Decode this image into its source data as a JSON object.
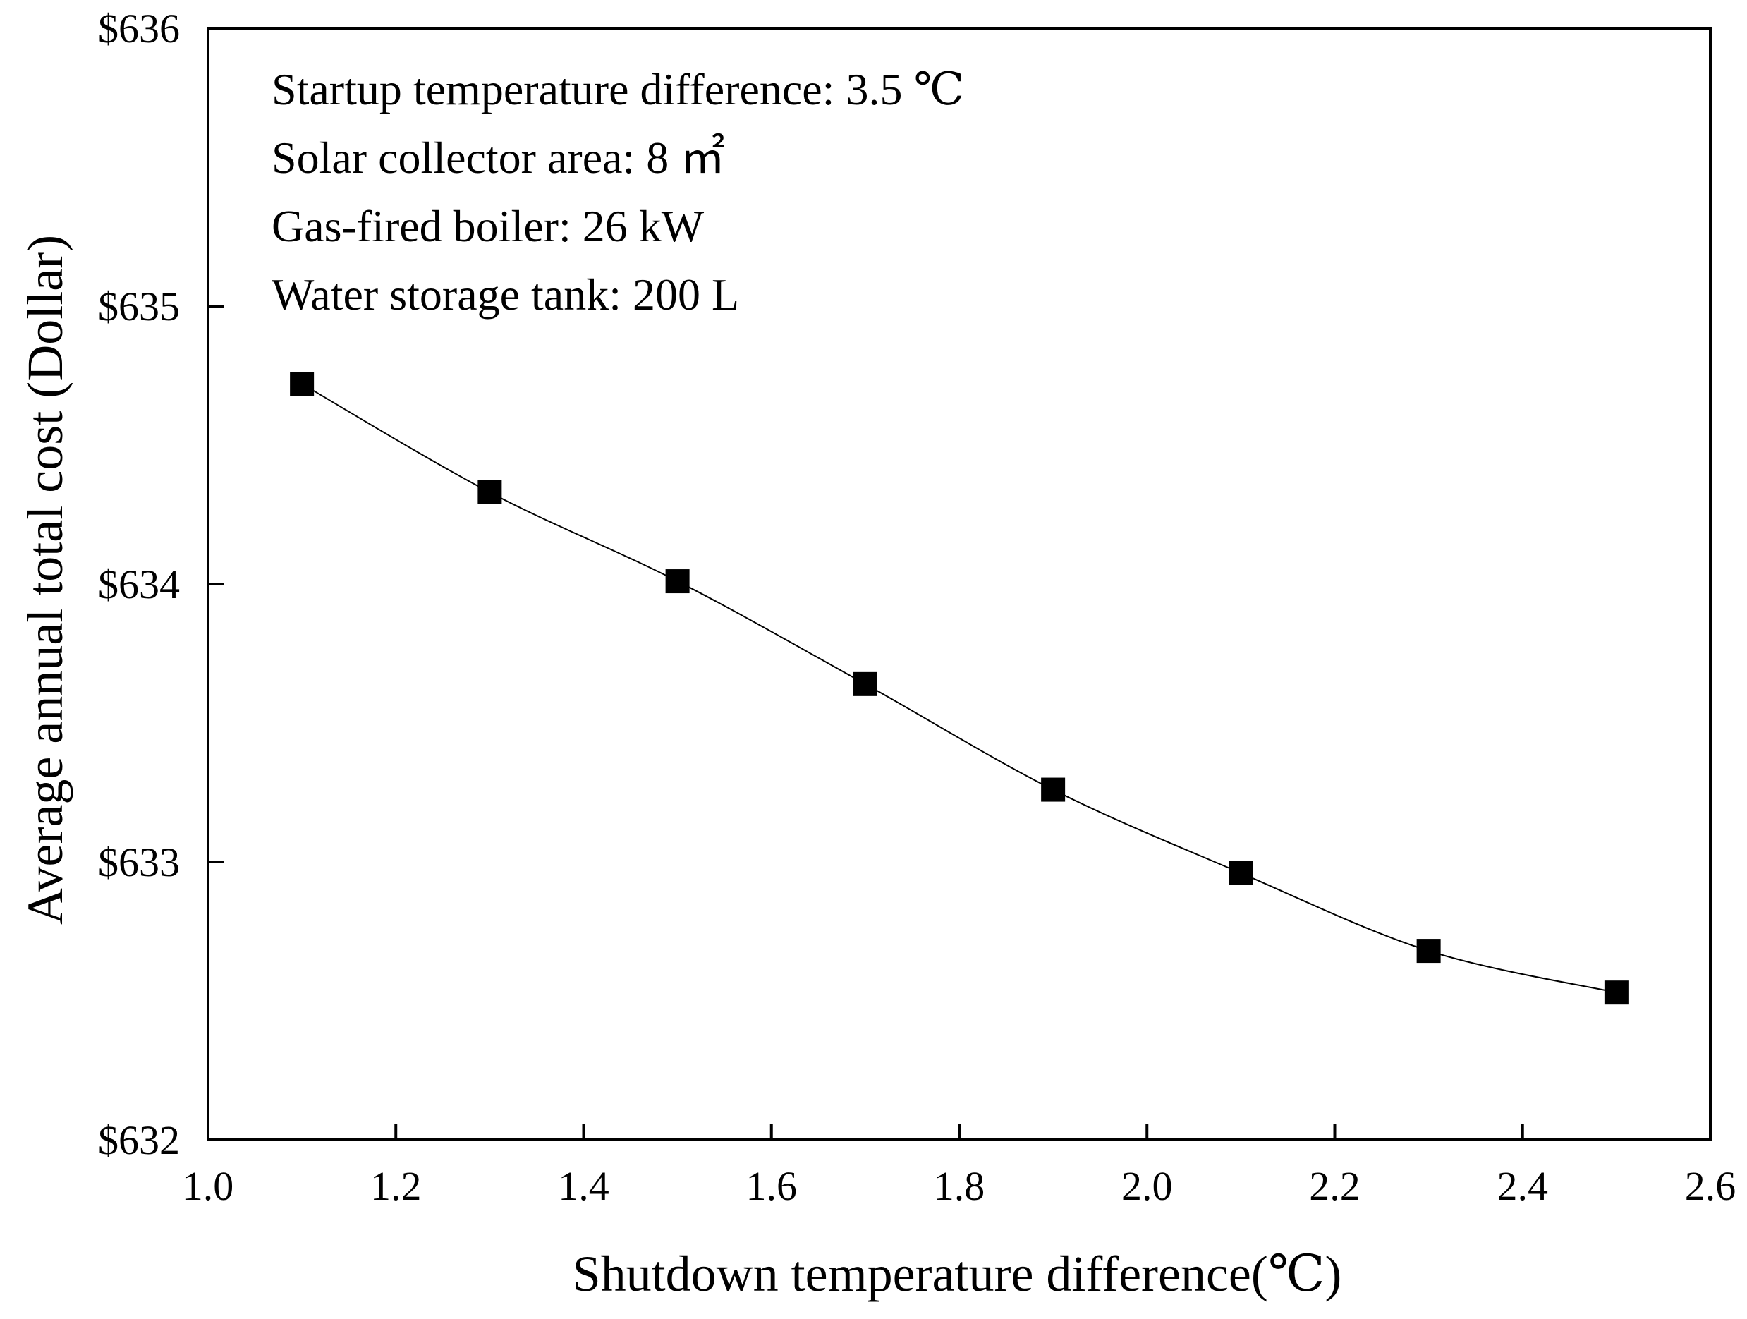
{
  "chart_data": {
    "type": "line",
    "title": "",
    "xlabel": "Shutdown temperature difference(℃)",
    "ylabel": "Average annual total cost (Dollar)",
    "xlim": [
      1.0,
      2.6
    ],
    "ylim": [
      632,
      636
    ],
    "x_ticks": [
      1.0,
      1.2,
      1.4,
      1.6,
      1.8,
      2.0,
      2.2,
      2.4,
      2.6
    ],
    "x_tick_labels": [
      "1.0",
      "1.2",
      "1.4",
      "1.6",
      "1.8",
      "2.0",
      "2.2",
      "2.4",
      "2.6"
    ],
    "y_ticks": [
      632,
      633,
      634,
      635,
      636
    ],
    "y_tick_labels": [
      "$632",
      "$633",
      "$634",
      "$635",
      "$636"
    ],
    "grid": false,
    "legend": null,
    "series": [
      {
        "name": "Average annual total cost",
        "marker": "square",
        "color": "#000000",
        "x": [
          1.1,
          1.3,
          1.5,
          1.7,
          1.9,
          2.1,
          2.3,
          2.5
        ],
        "y": [
          634.72,
          634.33,
          634.01,
          633.64,
          633.26,
          632.96,
          632.68,
          632.53
        ]
      }
    ],
    "annotations": [
      "Startup temperature difference: 3.5 ℃",
      "Solar collector area: 8 ㎡",
      "Gas-fired boiler: 26 kW",
      "Water storage tank: 200 L"
    ]
  }
}
